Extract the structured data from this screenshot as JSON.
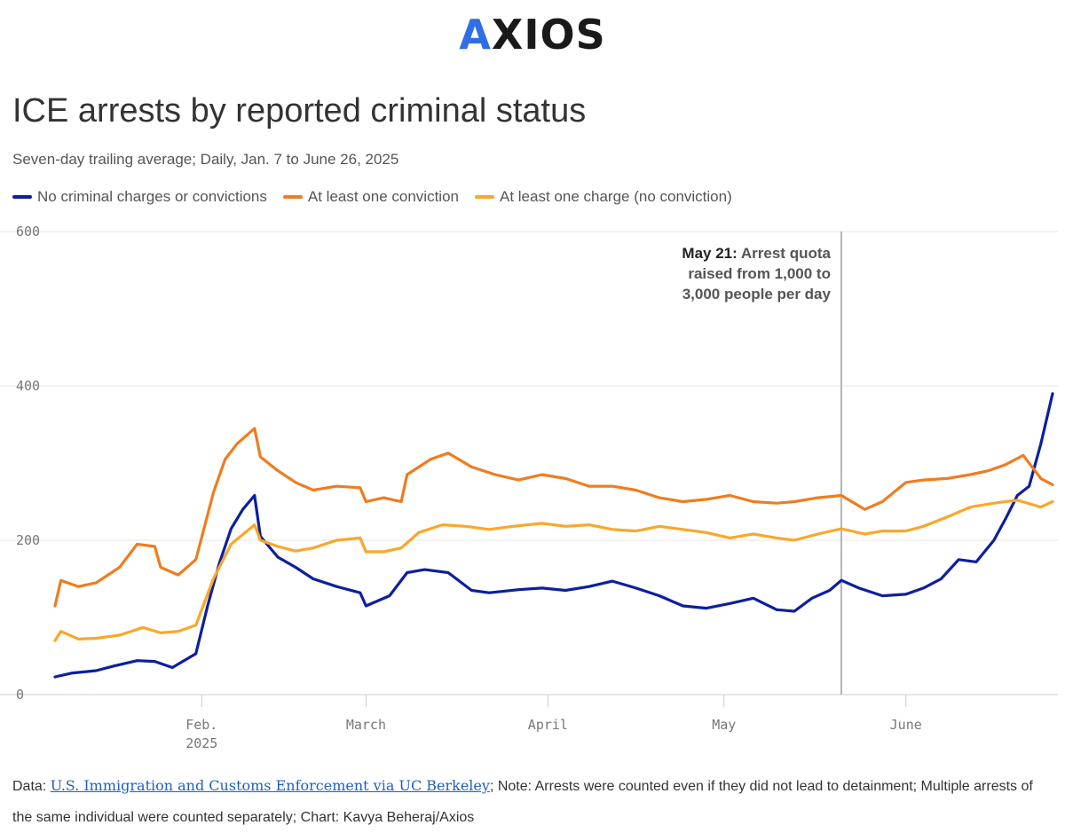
{
  "logo": {
    "prefix": "A",
    "rest": "XIOS"
  },
  "footer": {
    "data_prefix": "Data: ",
    "source_link": "U.S. Immigration and Customs Enforcement via UC Berkeley",
    "rest": "; Note: Arrests were counted even if they did not lead to detainment; Multiple arrests of the same individual were counted separately; Chart: Kavya Beheraj/Axios"
  },
  "chart_data": {
    "type": "line",
    "title": "ICE arrests by reported criminal status",
    "subtitle": "Seven-day trailing average; Daily, Jan. 7 to June 26, 2025",
    "x_start": "2025-01-07",
    "x_end": "2025-06-26",
    "ylim": [
      0,
      600
    ],
    "y_ticks": [
      0,
      200,
      400,
      600
    ],
    "x_ticks": [
      {
        "date": "2025-02-01",
        "label": "Feb.",
        "label2": "2025"
      },
      {
        "date": "2025-03-01",
        "label": "March",
        "label2": ""
      },
      {
        "date": "2025-04-01",
        "label": "April",
        "label2": ""
      },
      {
        "date": "2025-05-01",
        "label": "May",
        "label2": ""
      },
      {
        "date": "2025-06-01",
        "label": "June",
        "label2": ""
      }
    ],
    "grid": true,
    "legend_position": "top-left",
    "annotation": {
      "date": "2025-05-21",
      "bold": "May 21:",
      "line1_rest": " Arrest quota",
      "line2": "raised from 1,000 to",
      "line3": "3,000 people per day"
    },
    "series": [
      {
        "name": "No criminal charges or convictions",
        "color": "#0d1f9e",
        "points": [
          [
            "2025-01-07",
            23
          ],
          [
            "2025-01-10",
            28
          ],
          [
            "2025-01-14",
            31
          ],
          [
            "2025-01-17",
            37
          ],
          [
            "2025-01-21",
            44
          ],
          [
            "2025-01-24",
            43
          ],
          [
            "2025-01-27",
            35
          ],
          [
            "2025-01-31",
            53
          ],
          [
            "2025-02-02",
            115
          ],
          [
            "2025-02-04",
            170
          ],
          [
            "2025-02-06",
            215
          ],
          [
            "2025-02-08",
            240
          ],
          [
            "2025-02-10",
            258
          ],
          [
            "2025-02-11",
            205
          ],
          [
            "2025-02-14",
            178
          ],
          [
            "2025-02-17",
            165
          ],
          [
            "2025-02-20",
            150
          ],
          [
            "2025-02-24",
            140
          ],
          [
            "2025-02-28",
            132
          ],
          [
            "2025-03-01",
            115
          ],
          [
            "2025-03-05",
            128
          ],
          [
            "2025-03-08",
            158
          ],
          [
            "2025-03-11",
            162
          ],
          [
            "2025-03-15",
            158
          ],
          [
            "2025-03-19",
            135
          ],
          [
            "2025-03-22",
            132
          ],
          [
            "2025-03-27",
            136
          ],
          [
            "2025-03-31",
            138
          ],
          [
            "2025-04-04",
            135
          ],
          [
            "2025-04-08",
            140
          ],
          [
            "2025-04-12",
            147
          ],
          [
            "2025-04-16",
            138
          ],
          [
            "2025-04-20",
            128
          ],
          [
            "2025-04-24",
            115
          ],
          [
            "2025-04-28",
            112
          ],
          [
            "2025-05-02",
            118
          ],
          [
            "2025-05-06",
            125
          ],
          [
            "2025-05-10",
            110
          ],
          [
            "2025-05-13",
            108
          ],
          [
            "2025-05-16",
            125
          ],
          [
            "2025-05-19",
            135
          ],
          [
            "2025-05-21",
            148
          ],
          [
            "2025-05-24",
            138
          ],
          [
            "2025-05-28",
            128
          ],
          [
            "2025-06-01",
            130
          ],
          [
            "2025-06-04",
            138
          ],
          [
            "2025-06-07",
            150
          ],
          [
            "2025-06-10",
            175
          ],
          [
            "2025-06-13",
            172
          ],
          [
            "2025-06-16",
            200
          ],
          [
            "2025-06-18",
            228
          ],
          [
            "2025-06-20",
            258
          ],
          [
            "2025-06-22",
            270
          ],
          [
            "2025-06-24",
            325
          ],
          [
            "2025-06-26",
            390
          ]
        ]
      },
      {
        "name": "At least one conviction",
        "color": "#f07c1e",
        "points": [
          [
            "2025-01-07",
            115
          ],
          [
            "2025-01-08",
            148
          ],
          [
            "2025-01-11",
            140
          ],
          [
            "2025-01-14",
            145
          ],
          [
            "2025-01-18",
            165
          ],
          [
            "2025-01-21",
            195
          ],
          [
            "2025-01-24",
            192
          ],
          [
            "2025-01-25",
            165
          ],
          [
            "2025-01-28",
            155
          ],
          [
            "2025-01-31",
            175
          ],
          [
            "2025-02-03",
            262
          ],
          [
            "2025-02-05",
            305
          ],
          [
            "2025-02-07",
            325
          ],
          [
            "2025-02-10",
            345
          ],
          [
            "2025-02-11",
            308
          ],
          [
            "2025-02-14",
            290
          ],
          [
            "2025-02-17",
            275
          ],
          [
            "2025-02-20",
            265
          ],
          [
            "2025-02-24",
            270
          ],
          [
            "2025-02-28",
            268
          ],
          [
            "2025-03-01",
            250
          ],
          [
            "2025-03-04",
            255
          ],
          [
            "2025-03-07",
            250
          ],
          [
            "2025-03-08",
            285
          ],
          [
            "2025-03-12",
            305
          ],
          [
            "2025-03-15",
            313
          ],
          [
            "2025-03-19",
            295
          ],
          [
            "2025-03-23",
            285
          ],
          [
            "2025-03-27",
            278
          ],
          [
            "2025-03-31",
            285
          ],
          [
            "2025-04-04",
            280
          ],
          [
            "2025-04-08",
            270
          ],
          [
            "2025-04-12",
            270
          ],
          [
            "2025-04-16",
            265
          ],
          [
            "2025-04-20",
            255
          ],
          [
            "2025-04-24",
            250
          ],
          [
            "2025-04-28",
            253
          ],
          [
            "2025-05-02",
            258
          ],
          [
            "2025-05-06",
            250
          ],
          [
            "2025-05-10",
            248
          ],
          [
            "2025-05-13",
            250
          ],
          [
            "2025-05-17",
            255
          ],
          [
            "2025-05-21",
            258
          ],
          [
            "2025-05-25",
            240
          ],
          [
            "2025-05-28",
            250
          ],
          [
            "2025-06-01",
            275
          ],
          [
            "2025-06-04",
            278
          ],
          [
            "2025-06-08",
            280
          ],
          [
            "2025-06-12",
            285
          ],
          [
            "2025-06-15",
            290
          ],
          [
            "2025-06-18",
            298
          ],
          [
            "2025-06-21",
            310
          ],
          [
            "2025-06-24",
            280
          ],
          [
            "2025-06-26",
            272
          ]
        ]
      },
      {
        "name": "At least one charge (no conviction)",
        "color": "#f9a72b",
        "points": [
          [
            "2025-01-07",
            70
          ],
          [
            "2025-01-08",
            82
          ],
          [
            "2025-01-11",
            72
          ],
          [
            "2025-01-14",
            73
          ],
          [
            "2025-01-18",
            77
          ],
          [
            "2025-01-22",
            87
          ],
          [
            "2025-01-25",
            80
          ],
          [
            "2025-01-28",
            82
          ],
          [
            "2025-01-31",
            90
          ],
          [
            "2025-02-03",
            150
          ],
          [
            "2025-02-06",
            195
          ],
          [
            "2025-02-10",
            220
          ],
          [
            "2025-02-11",
            200
          ],
          [
            "2025-02-14",
            192
          ],
          [
            "2025-02-17",
            186
          ],
          [
            "2025-02-20",
            190
          ],
          [
            "2025-02-24",
            200
          ],
          [
            "2025-02-28",
            203
          ],
          [
            "2025-03-01",
            185
          ],
          [
            "2025-03-04",
            185
          ],
          [
            "2025-03-07",
            190
          ],
          [
            "2025-03-10",
            210
          ],
          [
            "2025-03-14",
            220
          ],
          [
            "2025-03-18",
            218
          ],
          [
            "2025-03-22",
            214
          ],
          [
            "2025-03-26",
            218
          ],
          [
            "2025-03-31",
            222
          ],
          [
            "2025-04-04",
            218
          ],
          [
            "2025-04-08",
            220
          ],
          [
            "2025-04-12",
            214
          ],
          [
            "2025-04-16",
            212
          ],
          [
            "2025-04-20",
            218
          ],
          [
            "2025-04-24",
            214
          ],
          [
            "2025-04-28",
            210
          ],
          [
            "2025-05-02",
            203
          ],
          [
            "2025-05-06",
            208
          ],
          [
            "2025-05-10",
            203
          ],
          [
            "2025-05-13",
            200
          ],
          [
            "2025-05-17",
            208
          ],
          [
            "2025-05-21",
            215
          ],
          [
            "2025-05-25",
            208
          ],
          [
            "2025-05-28",
            212
          ],
          [
            "2025-06-01",
            212
          ],
          [
            "2025-06-04",
            218
          ],
          [
            "2025-06-08",
            230
          ],
          [
            "2025-06-12",
            243
          ],
          [
            "2025-06-16",
            248
          ],
          [
            "2025-06-20",
            252
          ],
          [
            "2025-06-24",
            243
          ],
          [
            "2025-06-26",
            250
          ]
        ]
      }
    ]
  }
}
